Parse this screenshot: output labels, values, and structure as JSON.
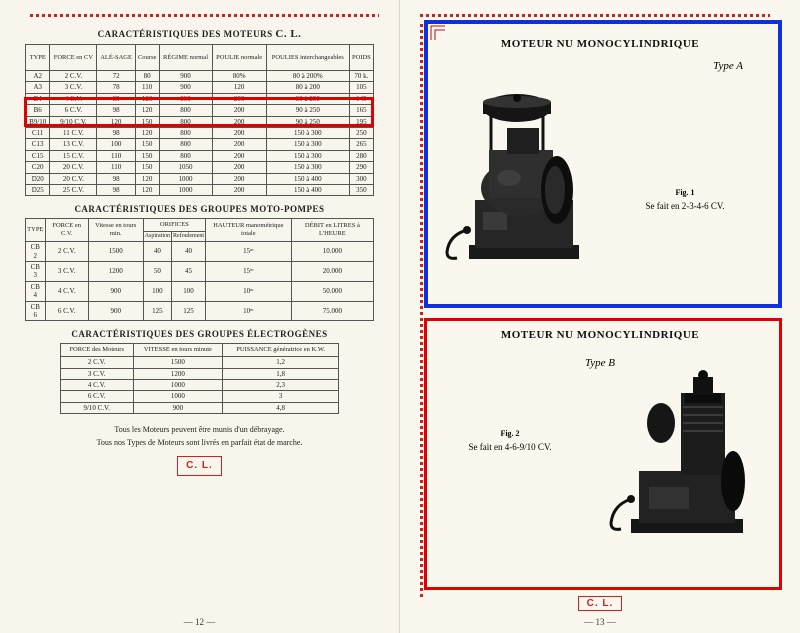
{
  "left": {
    "title1": "CARACTÉRISTIQUES DES MOTEURS",
    "brand": "C. L.",
    "table1": {
      "headers": [
        "TYPE",
        "FORCE en CV",
        "ALÉ-SAGE",
        "Course",
        "RÉGIME normal",
        "POULIE normale",
        "POULIES interchangeables",
        "POIDS"
      ],
      "rows": [
        [
          "A2",
          "2 C.V.",
          "72",
          "80",
          "900",
          "80%",
          "80 à 200%",
          "70 k."
        ],
        [
          "A3",
          "3 C.V.",
          "78",
          "110",
          "900",
          "120",
          "80 à 200",
          "105"
        ],
        [
          "B4",
          "4 C.V.",
          "85",
          "120",
          "800",
          "200",
          "90 à 250",
          "145"
        ],
        [
          "B6",
          "6 C.V.",
          "98",
          "120",
          "800",
          "200",
          "90 à 250",
          "165"
        ],
        [
          "B9/10",
          "9/10 C.V.",
          "120",
          "150",
          "800",
          "200",
          "90 à 250",
          "195"
        ],
        [
          "C11",
          "11 C.V.",
          "98",
          "120",
          "800",
          "200",
          "150 à 300",
          "250"
        ],
        [
          "C13",
          "13 C.V.",
          "100",
          "150",
          "800",
          "200",
          "150 à 300",
          "265"
        ],
        [
          "C15",
          "15 C.V.",
          "110",
          "150",
          "800",
          "200",
          "150 à 300",
          "280"
        ],
        [
          "C20",
          "20 C.V.",
          "110",
          "150",
          "1050",
          "200",
          "150 à 300",
          "290"
        ],
        [
          "D20",
          "20 C.V.",
          "98",
          "120",
          "1000",
          "200",
          "150 à 400",
          "300"
        ],
        [
          "D25",
          "25 C.V.",
          "98",
          "120",
          "1000",
          "200",
          "150 à 400",
          "350"
        ]
      ]
    },
    "title2": "CARACTÉRISTIQUES DES GROUPES MOTO-POMPES",
    "table2": {
      "headers": [
        "TYPE",
        "FORCE en C.V.",
        "Vitesse en tours min.",
        "ORIFICES",
        "HAUTEUR manométrique totale",
        "DÉBIT en LITRES à L'HEURE"
      ],
      "subheaders": [
        "Aspiration",
        "Refoulement"
      ],
      "rows": [
        [
          "CB 2",
          "2 C.V.",
          "1500",
          "40",
          "40",
          "15ᵐ",
          "10.000"
        ],
        [
          "CB 3",
          "3 C.V.",
          "1200",
          "50",
          "45",
          "15ᵐ",
          "20.000"
        ],
        [
          "CB 4",
          "4 C.V.",
          "900",
          "100",
          "100",
          "10ᵐ",
          "50.000"
        ],
        [
          "CB 6",
          "6 C.V.",
          "900",
          "125",
          "125",
          "10ᵐ",
          "75.000"
        ]
      ]
    },
    "title3": "CARACTÉRISTIQUES DES GROUPES ÉLECTROGÈNES",
    "table3": {
      "headers": [
        "FORCE des Moteurs",
        "VITESSE en tours minute",
        "PUISSANCE génératrice en K.W."
      ],
      "rows": [
        [
          "2 C.V.",
          "1500",
          "1,2"
        ],
        [
          "3 C.V.",
          "1200",
          "1,8"
        ],
        [
          "4 C.V.",
          "1000",
          "2,3"
        ],
        [
          "6 C.V.",
          "1000",
          "3"
        ],
        [
          "9/10 C.V.",
          "900",
          "4,8"
        ]
      ]
    },
    "foot1": "Tous les Moteurs peuvent être munis d'un débrayage.",
    "foot2": "Tous nos Types de Moteurs sont livrés en parfait état de marche.",
    "cl": "C. L.",
    "pagenum": "— 12 —"
  },
  "right": {
    "panelA": {
      "title": "MOTEUR NU MONOCYLINDRIQUE",
      "type": "Type A",
      "fig": "Fig. 1",
      "cap": "Se fait en 2-3-4-6 CV."
    },
    "panelB": {
      "title": "MOTEUR NU MONOCYLINDRIQUE",
      "type": "Type B",
      "fig": "Fig. 2",
      "cap": "Se fait en 4-6-9/10 CV."
    },
    "cl": "C. L.",
    "pagenum": "— 13 —"
  },
  "colors": {
    "red": "#e00000",
    "blue": "#1030e0",
    "paper": "#f8f5ec",
    "ink": "#222222"
  }
}
